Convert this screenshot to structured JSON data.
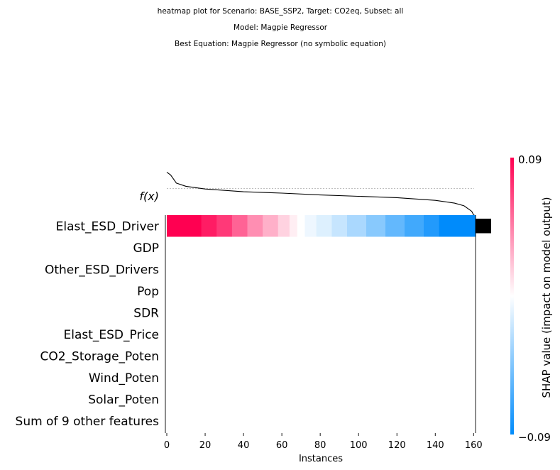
{
  "figure": {
    "title_lines": [
      "heatmap plot for Scenario: BASE_SSP2, Target: CO2eq, Subset: all",
      "Model: Magpie Regressor",
      "Best Equation: Magpie Regressor (no symbolic equation)"
    ]
  },
  "chart_data": {
    "type": "heatmap",
    "title": "heatmap plot for Scenario: BASE_SSP2, Target: CO2eq, Subset: all",
    "xlabel": "Instances",
    "x_ticks": [
      0,
      20,
      40,
      60,
      80,
      100,
      120,
      140,
      160
    ],
    "xlim": [
      0,
      161
    ],
    "n_instances": 161,
    "fx_label": "f(x)",
    "features": [
      "Elast_ESD_Driver",
      "GDP",
      "Other_ESD_Drivers",
      "Pop",
      "SDR",
      "Elast_ESD_Price",
      "CO2_Storage_Poten",
      "Wind_Poten",
      "Solar_Poten",
      "Sum of 9 other features"
    ],
    "shap_rows": [
      {
        "feature": "Elast_ESD_Driver",
        "segments": [
          {
            "start": 0,
            "end": 18,
            "value": 0.09
          },
          {
            "start": 18,
            "end": 26,
            "value": 0.08
          },
          {
            "start": 26,
            "end": 34,
            "value": 0.07
          },
          {
            "start": 34,
            "end": 42,
            "value": 0.055
          },
          {
            "start": 42,
            "end": 50,
            "value": 0.04
          },
          {
            "start": 50,
            "end": 58,
            "value": 0.028
          },
          {
            "start": 58,
            "end": 64,
            "value": 0.016
          },
          {
            "start": 64,
            "end": 68,
            "value": 0.006
          },
          {
            "start": 68,
            "end": 72,
            "value": 0.0
          },
          {
            "start": 72,
            "end": 78,
            "value": -0.006
          },
          {
            "start": 78,
            "end": 86,
            "value": -0.012
          },
          {
            "start": 86,
            "end": 94,
            "value": -0.02
          },
          {
            "start": 94,
            "end": 104,
            "value": -0.03
          },
          {
            "start": 104,
            "end": 114,
            "value": -0.042
          },
          {
            "start": 114,
            "end": 124,
            "value": -0.055
          },
          {
            "start": 124,
            "end": 134,
            "value": -0.067
          },
          {
            "start": 134,
            "end": 142,
            "value": -0.078
          },
          {
            "start": 142,
            "end": 161,
            "value": -0.09
          }
        ]
      }
    ],
    "fx_curve": [
      [
        0,
        0.86
      ],
      [
        2,
        0.8
      ],
      [
        5,
        0.62
      ],
      [
        10,
        0.55
      ],
      [
        20,
        0.49
      ],
      [
        40,
        0.43
      ],
      [
        60,
        0.4
      ],
      [
        80,
        0.36
      ],
      [
        100,
        0.33
      ],
      [
        120,
        0.3
      ],
      [
        140,
        0.24
      ],
      [
        150,
        0.18
      ],
      [
        155,
        0.12
      ],
      [
        159,
        0.0
      ],
      [
        160,
        -0.08
      ],
      [
        161,
        -0.1
      ]
    ],
    "fx_baseline": 0.5,
    "feature_importance": [
      {
        "feature": "Elast_ESD_Driver",
        "value": 1.0
      },
      {
        "feature": "GDP",
        "value": 0
      },
      {
        "feature": "Other_ESD_Drivers",
        "value": 0
      },
      {
        "feature": "Pop",
        "value": 0
      },
      {
        "feature": "SDR",
        "value": 0
      },
      {
        "feature": "Elast_ESD_Price",
        "value": 0
      },
      {
        "feature": "CO2_Storage_Poten",
        "value": 0
      },
      {
        "feature": "Wind_Poten",
        "value": 0
      },
      {
        "feature": "Solar_Poten",
        "value": 0
      },
      {
        "feature": "Sum of 9 other features",
        "value": 0
      }
    ],
    "colorbar": {
      "label": "SHAP value (impact on model output)",
      "vmax": 0.09,
      "vmin": -0.09,
      "vmax_label": "0.09",
      "vmin_label": "−0.09",
      "color_positive": "#ff0051",
      "color_negative": "#008bfb",
      "color_mid": "#ffffff"
    },
    "grid": false
  }
}
